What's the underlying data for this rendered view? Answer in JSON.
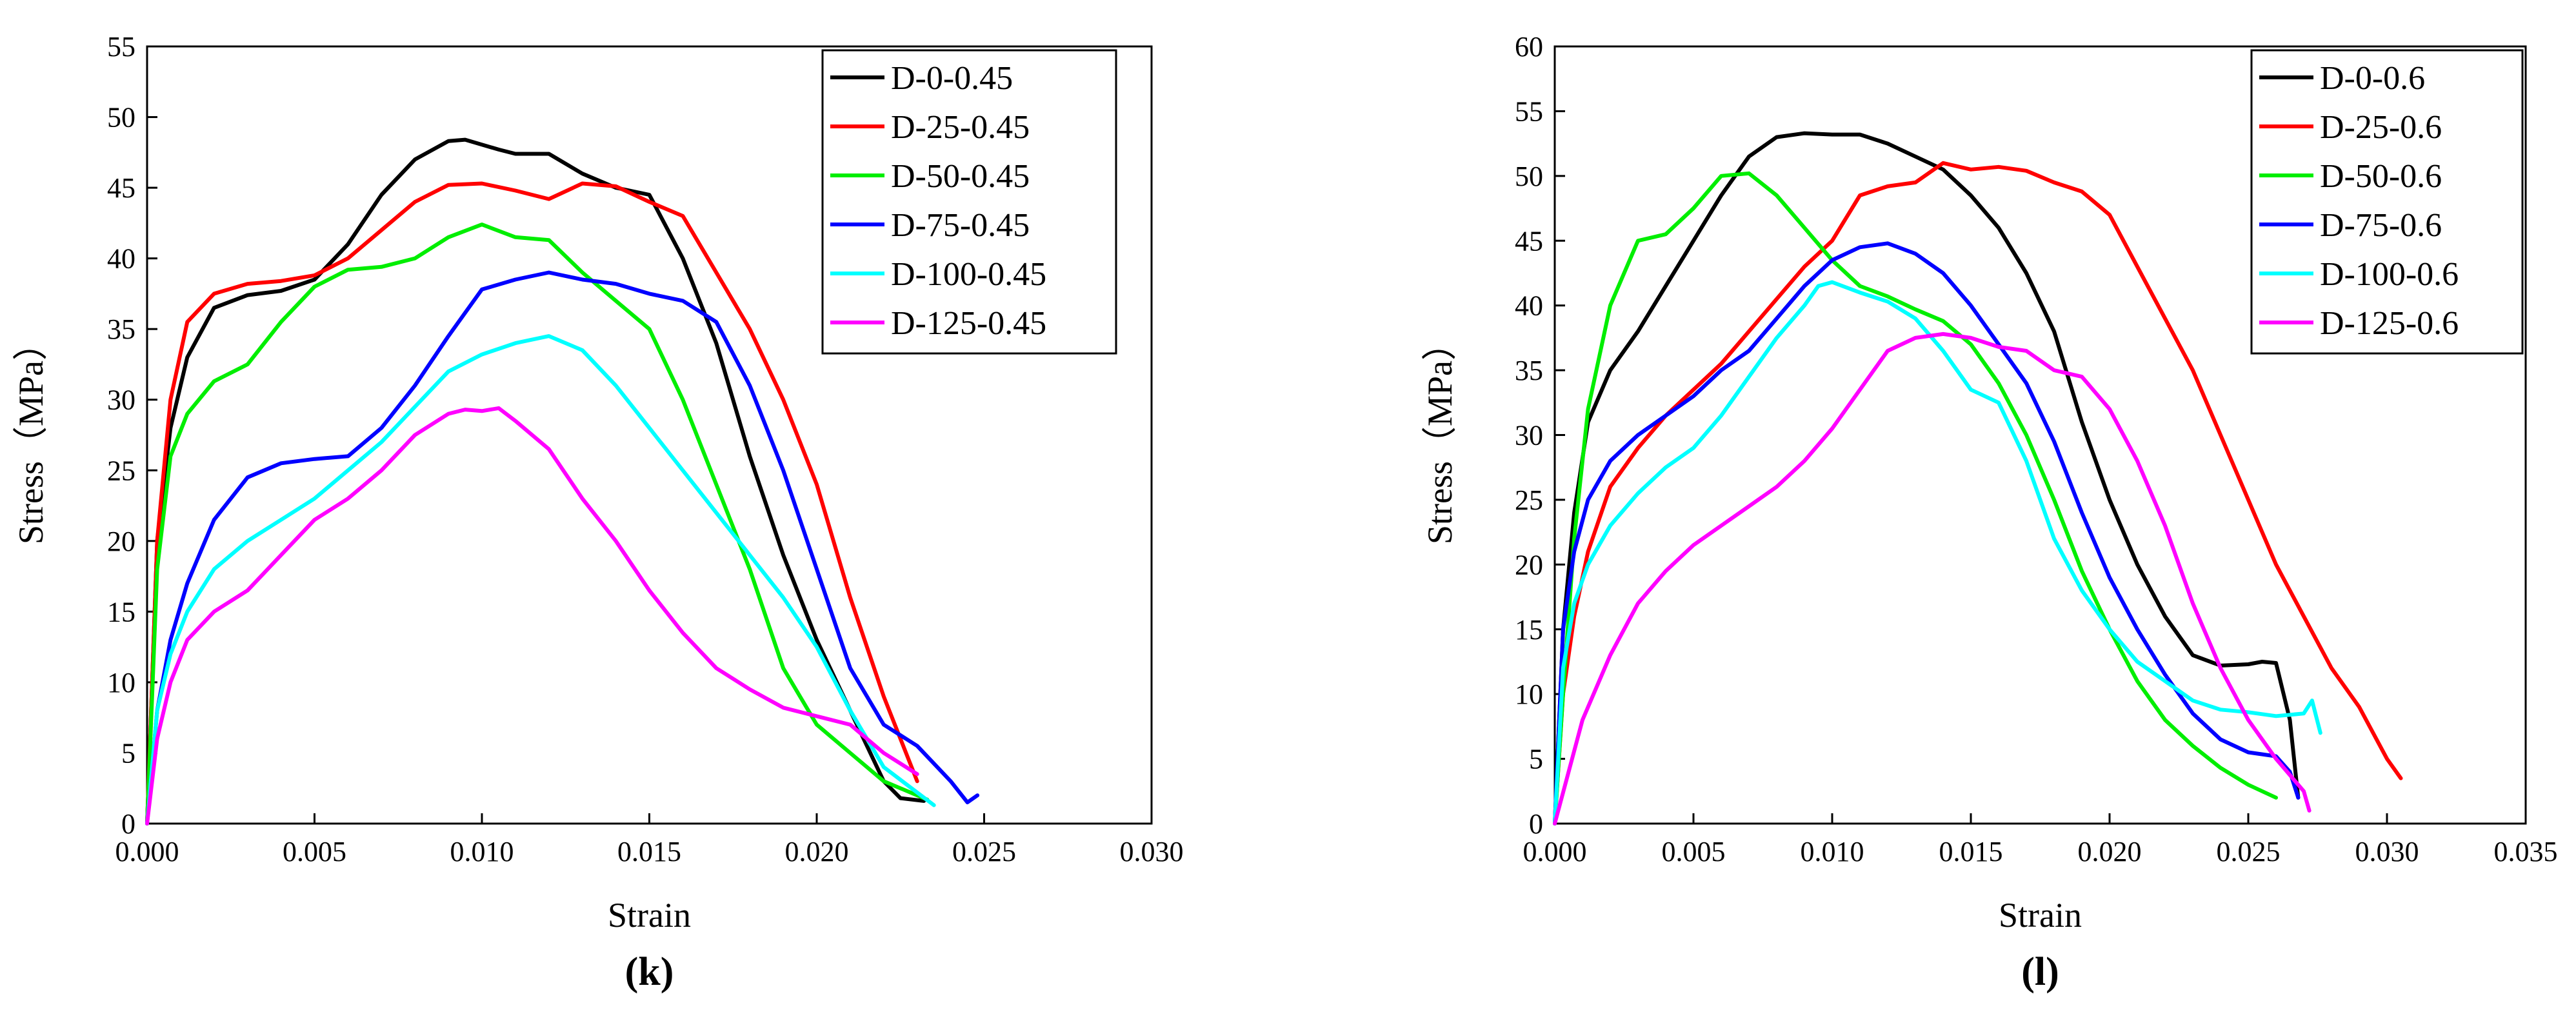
{
  "chart_data": [
    {
      "type": "line",
      "panel_label": "(k)",
      "xlabel": "Strain",
      "ylabel": "Stress（MPa）",
      "xlim": [
        0,
        0.03
      ],
      "ylim": [
        0,
        55
      ],
      "xticks": [
        "0.000",
        "0.005",
        "0.010",
        "0.015",
        "0.020",
        "0.025",
        "0.030"
      ],
      "yticks": [
        "0",
        "5",
        "10",
        "15",
        "20",
        "25",
        "30",
        "35",
        "40",
        "45",
        "50",
        "55"
      ],
      "legend_position": "top-right",
      "series": [
        {
          "name": "D-0-0.45",
          "color": "#000000",
          "x": [
            0,
            0.0003,
            0.0007,
            0.0012,
            0.002,
            0.003,
            0.004,
            0.005,
            0.006,
            0.007,
            0.008,
            0.009,
            0.0095,
            0.0105,
            0.011,
            0.012,
            0.013,
            0.014,
            0.015,
            0.016,
            0.017,
            0.018,
            0.019,
            0.02,
            0.021,
            0.022,
            0.0225,
            0.0232
          ],
          "y": [
            0,
            20,
            28,
            33,
            36.5,
            37.4,
            37.7,
            38.5,
            41,
            44.5,
            47,
            48.3,
            48.4,
            47.7,
            47.4,
            47.4,
            46,
            45,
            44.5,
            40,
            34,
            26,
            19,
            13,
            8,
            3,
            1.8,
            1.6
          ]
        },
        {
          "name": "D-25-0.45",
          "color": "#ff0000",
          "x": [
            0,
            0.0003,
            0.0007,
            0.0012,
            0.002,
            0.003,
            0.004,
            0.005,
            0.006,
            0.007,
            0.008,
            0.009,
            0.01,
            0.011,
            0.012,
            0.013,
            0.014,
            0.015,
            0.016,
            0.017,
            0.018,
            0.019,
            0.02,
            0.021,
            0.022,
            0.023
          ],
          "y": [
            0,
            20,
            30,
            35.5,
            37.5,
            38.2,
            38.4,
            38.8,
            40,
            42,
            44,
            45.2,
            45.3,
            44.8,
            44.2,
            45.3,
            45.1,
            44,
            43,
            39,
            35,
            30,
            24,
            16,
            9,
            3
          ]
        },
        {
          "name": "D-50-0.45",
          "color": "#00ee00",
          "x": [
            0,
            0.0003,
            0.0007,
            0.0012,
            0.002,
            0.003,
            0.004,
            0.005,
            0.006,
            0.007,
            0.008,
            0.009,
            0.01,
            0.011,
            0.012,
            0.013,
            0.014,
            0.015,
            0.016,
            0.017,
            0.018,
            0.019,
            0.02,
            0.021,
            0.022,
            0.023,
            0.0233
          ],
          "y": [
            0,
            18,
            26,
            29,
            31.3,
            32.5,
            35.5,
            38,
            39.2,
            39.4,
            40,
            41.5,
            42.4,
            41.5,
            41.3,
            39,
            37,
            35,
            30,
            24,
            18,
            11,
            7,
            5,
            3,
            2,
            1.7
          ]
        },
        {
          "name": "D-75-0.45",
          "color": "#0000ff",
          "x": [
            0,
            0.0003,
            0.0007,
            0.0012,
            0.002,
            0.003,
            0.004,
            0.005,
            0.006,
            0.007,
            0.008,
            0.009,
            0.01,
            0.011,
            0.012,
            0.013,
            0.014,
            0.015,
            0.016,
            0.017,
            0.018,
            0.019,
            0.02,
            0.021,
            0.022,
            0.023,
            0.024,
            0.0245,
            0.0248
          ],
          "y": [
            0,
            8,
            13,
            17,
            21.5,
            24.5,
            25.5,
            25.8,
            26,
            28,
            31,
            34.5,
            37.8,
            38.5,
            39,
            38.5,
            38.2,
            37.5,
            37,
            35.5,
            31,
            25,
            18,
            11,
            7,
            5.5,
            3,
            1.5,
            2
          ]
        },
        {
          "name": "D-100-0.45",
          "color": "#00ffff",
          "x": [
            0,
            0.0003,
            0.0007,
            0.0012,
            0.002,
            0.003,
            0.004,
            0.005,
            0.006,
            0.007,
            0.008,
            0.009,
            0.01,
            0.011,
            0.012,
            0.013,
            0.014,
            0.015,
            0.016,
            0.017,
            0.018,
            0.019,
            0.02,
            0.021,
            0.022,
            0.023,
            0.0235
          ],
          "y": [
            0,
            8,
            12,
            15,
            18,
            20,
            21.5,
            23,
            25,
            27,
            29.5,
            32,
            33.2,
            34,
            34.5,
            33.5,
            31,
            28,
            25,
            22,
            19,
            16,
            12.5,
            8,
            4,
            2.2,
            1.3
          ]
        },
        {
          "name": "D-125-0.45",
          "color": "#ff00ff",
          "x": [
            0,
            0.0003,
            0.0007,
            0.0012,
            0.002,
            0.003,
            0.004,
            0.005,
            0.006,
            0.007,
            0.008,
            0.009,
            0.0095,
            0.01,
            0.0105,
            0.011,
            0.012,
            0.013,
            0.014,
            0.015,
            0.016,
            0.017,
            0.018,
            0.019,
            0.02,
            0.021,
            0.022,
            0.023
          ],
          "y": [
            0,
            6,
            10,
            13,
            15,
            16.5,
            19,
            21.5,
            23,
            25,
            27.5,
            29,
            29.3,
            29.2,
            29.4,
            28.5,
            26.5,
            23,
            20,
            16.5,
            13.5,
            11,
            9.5,
            8.2,
            7.6,
            7,
            5,
            3.5
          ]
        }
      ]
    },
    {
      "type": "line",
      "panel_label": "(l)",
      "xlabel": "Strain",
      "ylabel": "Stress（MPa）",
      "xlim": [
        0,
        0.035
      ],
      "ylim": [
        0,
        60
      ],
      "xticks": [
        "0.000",
        "0.005",
        "0.010",
        "0.015",
        "0.020",
        "0.025",
        "0.030",
        "0.035"
      ],
      "yticks": [
        "0",
        "5",
        "10",
        "15",
        "20",
        "25",
        "30",
        "35",
        "40",
        "45",
        "50",
        "55",
        "60"
      ],
      "legend_position": "top-right",
      "series": [
        {
          "name": "D-0-0.6",
          "color": "#000000",
          "x": [
            0,
            0.0003,
            0.0007,
            0.0012,
            0.002,
            0.003,
            0.004,
            0.005,
            0.006,
            0.007,
            0.008,
            0.009,
            0.01,
            0.011,
            0.012,
            0.013,
            0.014,
            0.015,
            0.016,
            0.017,
            0.018,
            0.019,
            0.02,
            0.021,
            0.022,
            0.023,
            0.024,
            0.025,
            0.0255,
            0.026,
            0.0265,
            0.0268
          ],
          "y": [
            0,
            15,
            24,
            31,
            35,
            38,
            41.5,
            45,
            48.5,
            51.5,
            53,
            53.3,
            53.2,
            53.2,
            52.5,
            51.5,
            50.5,
            48.5,
            46,
            42.5,
            38,
            31,
            25,
            20,
            16,
            13,
            12.2,
            12.3,
            12.5,
            12.4,
            8,
            2
          ]
        },
        {
          "name": "D-25-0.6",
          "color": "#ff0000",
          "x": [
            0,
            0.0003,
            0.0007,
            0.0012,
            0.002,
            0.003,
            0.004,
            0.005,
            0.006,
            0.007,
            0.008,
            0.009,
            0.01,
            0.011,
            0.012,
            0.013,
            0.014,
            0.015,
            0.016,
            0.017,
            0.018,
            0.019,
            0.02,
            0.021,
            0.022,
            0.023,
            0.024,
            0.025,
            0.026,
            0.027,
            0.028,
            0.029,
            0.03,
            0.0305
          ],
          "y": [
            0,
            10,
            16,
            21,
            26,
            29,
            31.5,
            33.5,
            35.5,
            38,
            40.5,
            43,
            45,
            48.5,
            49.2,
            49.5,
            51,
            50.5,
            50.7,
            50.4,
            49.5,
            48.8,
            47,
            43,
            39,
            35,
            30,
            25,
            20,
            16,
            12,
            9,
            5,
            3.5
          ]
        },
        {
          "name": "D-50-0.6",
          "color": "#00ee00",
          "x": [
            0,
            0.0003,
            0.0007,
            0.0012,
            0.002,
            0.003,
            0.004,
            0.005,
            0.006,
            0.007,
            0.008,
            0.009,
            0.01,
            0.011,
            0.012,
            0.013,
            0.014,
            0.015,
            0.016,
            0.017,
            0.018,
            0.019,
            0.02,
            0.021,
            0.022,
            0.023,
            0.024,
            0.025,
            0.026
          ],
          "y": [
            0,
            10,
            22,
            32,
            40,
            45,
            45.5,
            47.5,
            50,
            50.2,
            48.5,
            46,
            43.5,
            41.5,
            40.7,
            39.7,
            38.8,
            37,
            34,
            30,
            25,
            19.5,
            15,
            11,
            8,
            6,
            4.3,
            3,
            2
          ]
        },
        {
          "name": "D-75-0.6",
          "color": "#0000ff",
          "x": [
            0,
            0.0003,
            0.0007,
            0.0012,
            0.002,
            0.003,
            0.004,
            0.005,
            0.006,
            0.007,
            0.008,
            0.009,
            0.01,
            0.011,
            0.012,
            0.013,
            0.014,
            0.015,
            0.016,
            0.017,
            0.018,
            0.019,
            0.02,
            0.021,
            0.022,
            0.023,
            0.024,
            0.025,
            0.026,
            0.0265,
            0.0268
          ],
          "y": [
            0,
            15,
            21,
            25,
            28,
            30,
            31.5,
            33,
            35,
            36.5,
            39,
            41.5,
            43.5,
            44.5,
            44.8,
            44,
            42.5,
            40,
            37,
            34,
            29.5,
            24,
            19,
            15,
            11.5,
            8.5,
            6.5,
            5.5,
            5.2,
            4,
            2
          ]
        },
        {
          "name": "D-100-0.6",
          "color": "#00ffff",
          "x": [
            0,
            0.0003,
            0.0007,
            0.0012,
            0.002,
            0.003,
            0.004,
            0.005,
            0.006,
            0.007,
            0.008,
            0.009,
            0.0095,
            0.01,
            0.011,
            0.012,
            0.013,
            0.014,
            0.015,
            0.016,
            0.017,
            0.018,
            0.019,
            0.02,
            0.021,
            0.022,
            0.023,
            0.024,
            0.025,
            0.026,
            0.027,
            0.0273,
            0.0276
          ],
          "y": [
            0,
            12,
            17,
            20,
            23,
            25.5,
            27.5,
            29,
            31.5,
            34.5,
            37.5,
            40,
            41.5,
            41.8,
            41,
            40.3,
            39,
            36.5,
            33.5,
            32.5,
            28,
            22,
            18,
            15,
            12.5,
            11,
            9.5,
            8.8,
            8.6,
            8.3,
            8.5,
            9.5,
            7
          ]
        },
        {
          "name": "D-125-0.6",
          "color": "#ff00ff",
          "x": [
            0,
            0.0005,
            0.001,
            0.002,
            0.003,
            0.004,
            0.005,
            0.006,
            0.007,
            0.008,
            0.009,
            0.01,
            0.011,
            0.012,
            0.013,
            0.014,
            0.015,
            0.016,
            0.017,
            0.018,
            0.019,
            0.02,
            0.021,
            0.022,
            0.023,
            0.024,
            0.025,
            0.026,
            0.027,
            0.0272
          ],
          "y": [
            0,
            4,
            8,
            13,
            17,
            19.5,
            21.5,
            23,
            24.5,
            26,
            28,
            30.5,
            33.5,
            36.5,
            37.5,
            37.8,
            37.5,
            36.8,
            36.5,
            35,
            34.5,
            32,
            28,
            23,
            17,
            12,
            8,
            5,
            2.5,
            1
          ]
        }
      ]
    }
  ]
}
